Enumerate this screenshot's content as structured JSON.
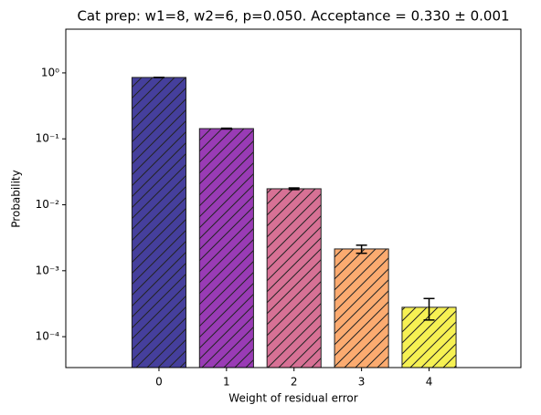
{
  "chart_data": {
    "type": "bar",
    "title": "Cat prep: w1=8, w2=6, p=0.050. Acceptance = 0.330 ± 0.001",
    "x_label": "Weight of residual error",
    "y_label": "Probability",
    "x": [
      0,
      1,
      2,
      3,
      4
    ],
    "values": [
      0.853,
      0.143,
      0.0175,
      0.00214,
      0.000279
    ],
    "errors": [
      0.003,
      0.002,
      0.0005,
      0.0003,
      0.0001
    ],
    "colors": [
      "#3b3597",
      "#9330b1",
      "#d5698f",
      "#fba668",
      "#f5f04a"
    ],
    "hatch": true,
    "log_y": true,
    "xlim": [
      -1.38,
      5.36
    ],
    "xticks": [
      0,
      1,
      2,
      3,
      4
    ],
    "ylim": [
      3.4e-05,
      4.6
    ],
    "yticks": [
      {
        "value": 0.0001,
        "label": "10⁻⁴"
      },
      {
        "value": 0.001,
        "label": "10⁻³"
      },
      {
        "value": 0.01,
        "label": "10⁻²"
      },
      {
        "value": 0.1,
        "label": "10⁻¹"
      },
      {
        "value": 1,
        "label": "10⁰"
      }
    ]
  }
}
